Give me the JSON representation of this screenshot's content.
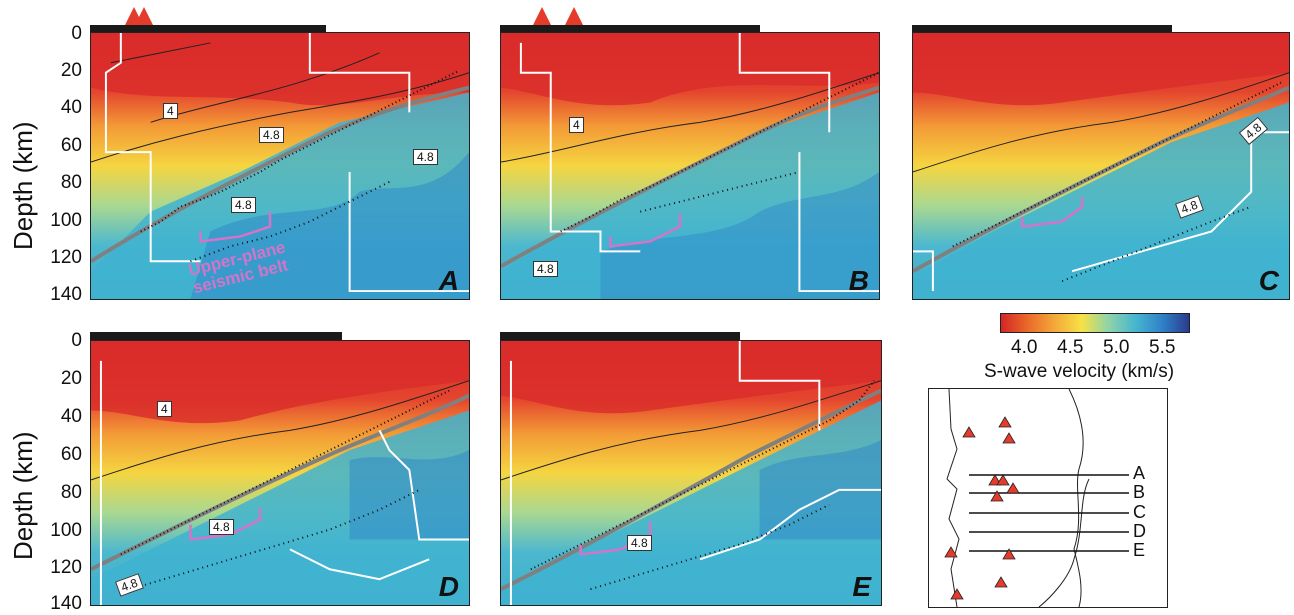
{
  "y_axis": {
    "label": "Depth (km)",
    "ticks": [
      "0",
      "20",
      "40",
      "60",
      "80",
      "100",
      "120",
      "140"
    ]
  },
  "panels": [
    {
      "letter": "A",
      "contour_labels": [
        "4",
        "4.8",
        "4.8",
        "4.8"
      ],
      "annotation": "Upper-plane seismic belt"
    },
    {
      "letter": "B",
      "contour_labels": [
        "4",
        "4.8"
      ]
    },
    {
      "letter": "C",
      "contour_labels": [
        "4.8",
        "4.8"
      ]
    },
    {
      "letter": "D",
      "contour_labels": [
        "4",
        "4.8",
        "4.8"
      ]
    },
    {
      "letter": "E",
      "contour_labels": [
        "4.8"
      ]
    }
  ],
  "colorbar": {
    "title": "S-wave velocity (km/s)",
    "ticks": [
      "4.0",
      "4.5",
      "5.0",
      "5.5"
    ],
    "colors": [
      "#d32626",
      "#f4a83a",
      "#f7e245",
      "#47b6cf",
      "#2a3b8f"
    ]
  },
  "map": {
    "lines": [
      "A",
      "B",
      "C",
      "D",
      "E"
    ]
  }
}
